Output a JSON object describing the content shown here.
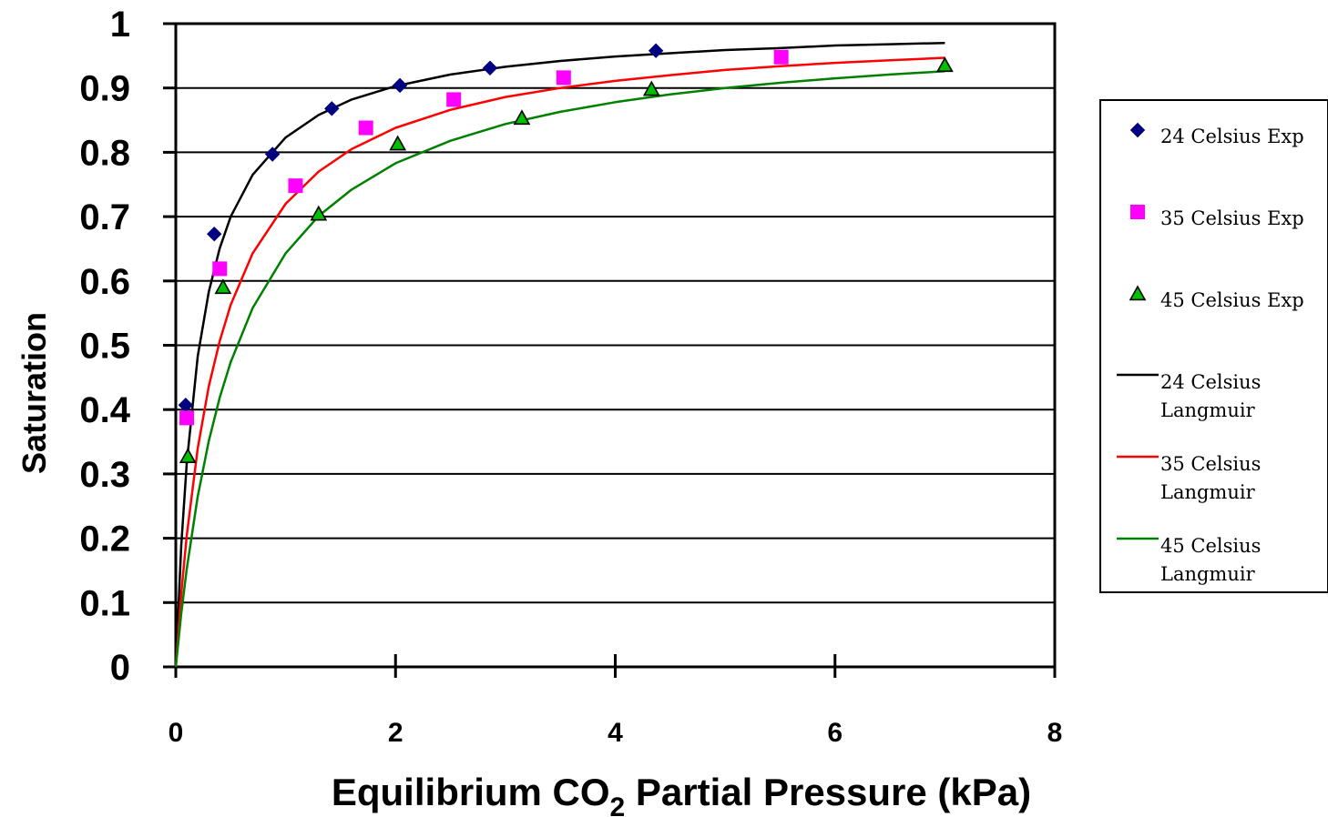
{
  "chart_data": {
    "type": "scatter",
    "title": "",
    "xlabel": "Equilibrium CO",
    "xlabel_subscript": "2",
    "xlabel_suffix": " Partial Pressure (kPa)",
    "ylabel": "Saturation",
    "xlim": [
      0,
      8
    ],
    "ylim": [
      0,
      1
    ],
    "xticks": [
      "0",
      "2",
      "4",
      "6",
      "8"
    ],
    "yticks": [
      "0",
      "0.1",
      "0.2",
      "0.3",
      "0.4",
      "0.5",
      "0.6",
      "0.7",
      "0.8",
      "0.9",
      "1"
    ],
    "grid": "horizontal",
    "legend_position": "right",
    "series": [
      {
        "name": "24 Celsius Exp",
        "kind": "markers",
        "marker": "diamond",
        "color": "#000080",
        "x": [
          0.09,
          0.35,
          0.88,
          1.42,
          2.04,
          2.86,
          4.37
        ],
        "y": [
          0.407,
          0.673,
          0.797,
          0.868,
          0.904,
          0.931,
          0.958
        ]
      },
      {
        "name": "35 Celsius Exp",
        "kind": "markers",
        "marker": "square",
        "color": "#ff00ff",
        "x": [
          0.1,
          0.4,
          1.09,
          1.73,
          2.53,
          3.53,
          5.51
        ],
        "y": [
          0.387,
          0.619,
          0.748,
          0.838,
          0.882,
          0.916,
          0.948
        ]
      },
      {
        "name": "45 Celsius Exp",
        "kind": "markers",
        "marker": "triangle",
        "color": "#00c000",
        "x": [
          0.11,
          0.43,
          1.3,
          2.02,
          3.15,
          4.33,
          7.0
        ],
        "y": [
          0.327,
          0.59,
          0.704,
          0.813,
          0.853,
          0.898,
          0.935
        ]
      },
      {
        "name": "24 Celsius Langmuir",
        "kind": "line",
        "color": "#000000",
        "x": [
          0,
          0.05,
          0.1,
          0.2,
          0.3,
          0.4,
          0.5,
          0.7,
          1.0,
          1.3,
          1.6,
          2.0,
          2.5,
          3.0,
          3.5,
          4.0,
          4.5,
          5.0,
          5.5,
          6.0,
          6.5,
          7.0
        ],
        "y": [
          0,
          0.189,
          0.318,
          0.483,
          0.583,
          0.651,
          0.7,
          0.765,
          0.823,
          0.858,
          0.882,
          0.903,
          0.921,
          0.933,
          0.942,
          0.949,
          0.954,
          0.959,
          0.962,
          0.966,
          0.968,
          0.97
        ]
      },
      {
        "name": "35 Celsius Langmuir",
        "kind": "line",
        "color": "#ff0000",
        "x": [
          0,
          0.05,
          0.1,
          0.2,
          0.3,
          0.4,
          0.5,
          0.7,
          1.0,
          1.3,
          1.6,
          2.0,
          2.5,
          3.0,
          3.5,
          4.0,
          4.5,
          5.0,
          5.5,
          6.0,
          6.5,
          7.0
        ],
        "y": [
          0,
          0.114,
          0.205,
          0.34,
          0.436,
          0.507,
          0.563,
          0.643,
          0.72,
          0.77,
          0.805,
          0.838,
          0.866,
          0.886,
          0.9,
          0.911,
          0.92,
          0.928,
          0.934,
          0.939,
          0.943,
          0.947
        ]
      },
      {
        "name": "45 Celsius Langmuir",
        "kind": "line",
        "color": "#008000",
        "x": [
          0,
          0.05,
          0.1,
          0.2,
          0.3,
          0.4,
          0.5,
          0.7,
          1.0,
          1.3,
          1.6,
          2.0,
          2.5,
          3.0,
          3.5,
          4.0,
          4.5,
          5.0,
          5.5,
          6.0,
          6.5,
          7.0
        ],
        "y": [
          0,
          0.083,
          0.153,
          0.265,
          0.351,
          0.419,
          0.474,
          0.558,
          0.643,
          0.701,
          0.742,
          0.783,
          0.818,
          0.844,
          0.863,
          0.878,
          0.89,
          0.9,
          0.908,
          0.915,
          0.921,
          0.926
        ]
      }
    ],
    "legend": [
      {
        "series": 0,
        "lines": [
          "24 Celsius Exp"
        ]
      },
      {
        "series": 1,
        "lines": [
          "35 Celsius Exp"
        ]
      },
      {
        "series": 2,
        "lines": [
          "45 Celsius Exp"
        ]
      },
      {
        "series": 3,
        "lines": [
          "24 Celsius",
          "Langmuir"
        ]
      },
      {
        "series": 4,
        "lines": [
          "35 Celsius",
          "Langmuir"
        ]
      },
      {
        "series": 5,
        "lines": [
          "45 Celsius",
          "Langmuir"
        ]
      }
    ]
  }
}
